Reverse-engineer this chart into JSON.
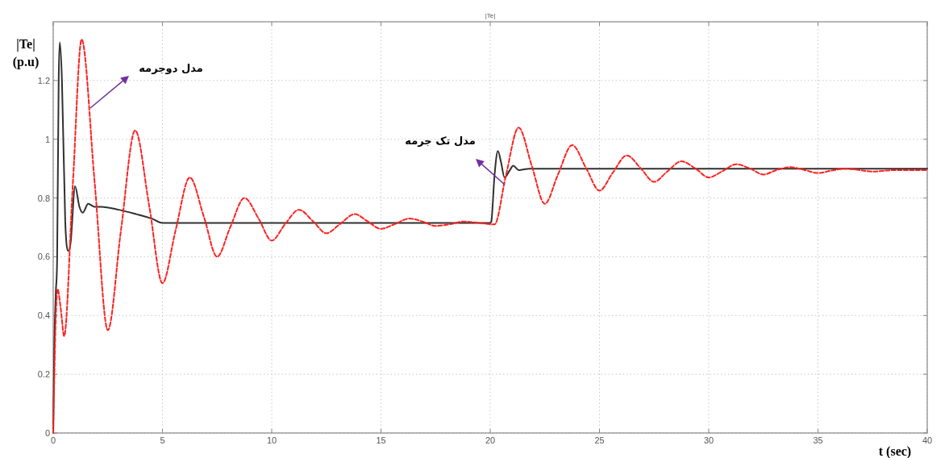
{
  "chart_data": {
    "type": "line",
    "title": "|Te|",
    "xlabel": "t (sec)",
    "ylabel": "|Te| (p.u)",
    "xlim": [
      0,
      40
    ],
    "ylim": [
      0,
      1.4
    ],
    "xticks": [
      0,
      5,
      10,
      15,
      20,
      25,
      30,
      35,
      40
    ],
    "yticks": [
      0,
      0.2,
      0.4,
      0.6,
      0.8,
      1,
      1.2
    ],
    "grid": true,
    "annotations": [
      "مدل دوجرمه",
      "مدل تک جرمه"
    ],
    "series": [
      {
        "color": "#303030",
        "line_style": "solid",
        "x": [
          0,
          0.05,
          0.12,
          0.18,
          0.25,
          0.3,
          0.4,
          0.55,
          0.7,
          0.8,
          1.0,
          1.2,
          1.35,
          1.6,
          1.9,
          2.2,
          3,
          3.8,
          4.5,
          5,
          20,
          20.05,
          20.2,
          20.35,
          20.5,
          20.65,
          20.9,
          21.05,
          21.3,
          21.8,
          40
        ],
        "values": [
          0,
          0.3,
          0.48,
          0.6,
          1.2,
          1.33,
          1.2,
          0.72,
          0.62,
          0.65,
          0.84,
          0.77,
          0.75,
          0.78,
          0.77,
          0.77,
          0.76,
          0.745,
          0.73,
          0.715,
          0.715,
          0.72,
          0.88,
          0.96,
          0.92,
          0.87,
          0.895,
          0.91,
          0.895,
          0.9,
          0.9
        ]
      },
      {
        "color": "#ff2020",
        "line_style": "dashed",
        "x": [
          0,
          0.1,
          0.2,
          0.35,
          0.5,
          0.9,
          1.3,
          1.9,
          2.5,
          3.1,
          3.75,
          4.4,
          5,
          5.6,
          6.25,
          6.9,
          7.5,
          8.1,
          8.75,
          9.4,
          10,
          10.6,
          11.25,
          11.9,
          12.5,
          13.1,
          13.8,
          14.4,
          15,
          15.6,
          16.3,
          16.9,
          17.5,
          18.1,
          18.8,
          19.5,
          20.2,
          20.7,
          21.3,
          21.9,
          22.5,
          23.1,
          23.75,
          24.4,
          25,
          25.6,
          26.25,
          26.9,
          27.5,
          28.1,
          28.75,
          29.4,
          30,
          30.6,
          31.25,
          31.9,
          32.5,
          33.1,
          33.75,
          34.4,
          35,
          35.6,
          36.25,
          36.9,
          37.5,
          38.5,
          40
        ],
        "values": [
          0,
          0.35,
          0.49,
          0.42,
          0.33,
          0.85,
          1.34,
          0.85,
          0.35,
          0.69,
          1.03,
          0.77,
          0.51,
          0.69,
          0.87,
          0.735,
          0.6,
          0.7,
          0.8,
          0.73,
          0.655,
          0.71,
          0.76,
          0.72,
          0.68,
          0.71,
          0.745,
          0.72,
          0.695,
          0.71,
          0.73,
          0.72,
          0.705,
          0.71,
          0.72,
          0.715,
          0.71,
          0.87,
          1.04,
          0.91,
          0.78,
          0.88,
          0.98,
          0.9,
          0.825,
          0.885,
          0.945,
          0.9,
          0.855,
          0.89,
          0.925,
          0.9,
          0.87,
          0.89,
          0.915,
          0.9,
          0.88,
          0.895,
          0.905,
          0.895,
          0.885,
          0.893,
          0.9,
          0.895,
          0.89,
          0.895,
          0.895
        ]
      }
    ]
  }
}
